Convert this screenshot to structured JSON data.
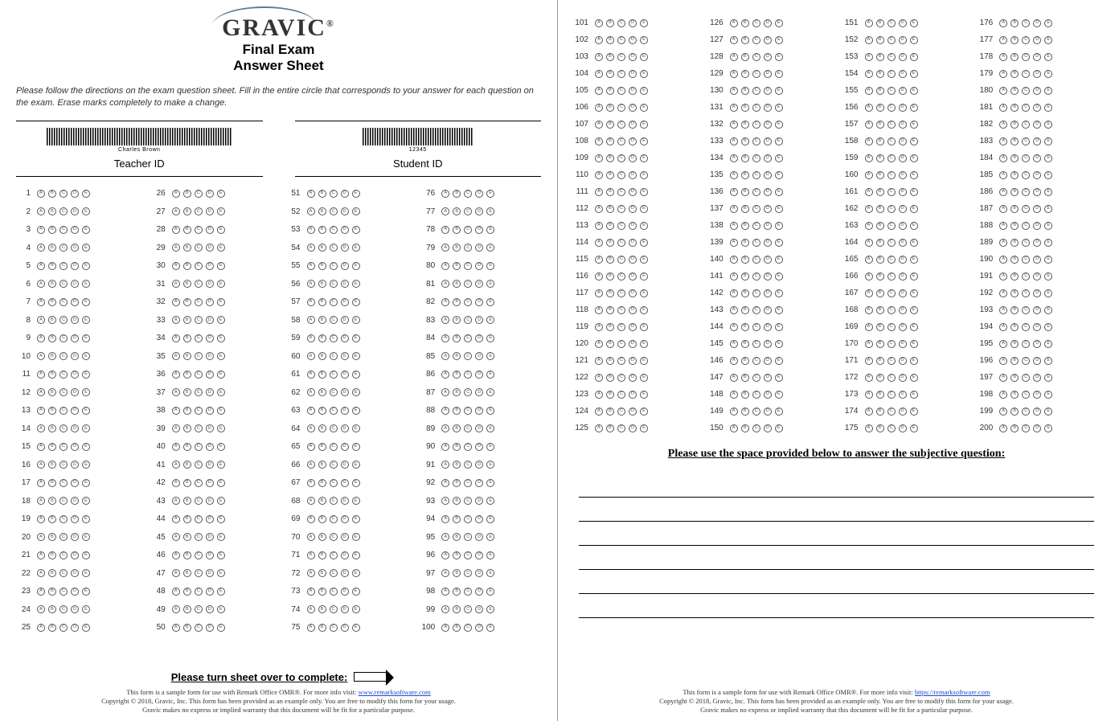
{
  "logo": {
    "word": "GRAVIC",
    "suffix": "®",
    "line1": "Final Exam",
    "line2": "Answer Sheet"
  },
  "instructions": "Please follow the directions on the exam question sheet. Fill in the entire circle that corresponds to your answer for each question on the exam. Erase marks completely to make a change.",
  "teacher": {
    "barcode_caption": "Charles Brown",
    "label": "Teacher ID"
  },
  "student": {
    "barcode_caption": "12345",
    "label": "Student ID"
  },
  "bubble_options": [
    "A",
    "B",
    "C",
    "D",
    "E"
  ],
  "page1": {
    "columns": [
      {
        "start": 1,
        "end": 25
      },
      {
        "start": 26,
        "end": 50
      },
      {
        "start": 51,
        "end": 75
      },
      {
        "start": 76,
        "end": 100
      }
    ],
    "turn_over_text": "Please turn sheet over to complete:"
  },
  "page2": {
    "columns": [
      {
        "start": 101,
        "end": 125
      },
      {
        "start": 126,
        "end": 150
      },
      {
        "start": 151,
        "end": 175
      },
      {
        "start": 176,
        "end": 200
      }
    ],
    "subjective_heading": "Please use the space provided below to answer the subjective question:",
    "writing_line_count": 6
  },
  "footer": {
    "line1_a": "This form is a sample form for use with Remark Office OMR®. For more info visit: ",
    "line1_link_text": "www.remarksoftware.com",
    "line2": "Copyright © 2018, Gravic, Inc. This form has been provided as an example only. You are free to modify this form for your usage.",
    "line3": "Gravic makes no express or implied warranty that this document will be fit for a particular purpose.",
    "page2_line1_a": "This form is a sample form for use with Remark Office OMR®. For more info visit: ",
    "page2_line1_link_text": "https://remarksoftware.com"
  }
}
